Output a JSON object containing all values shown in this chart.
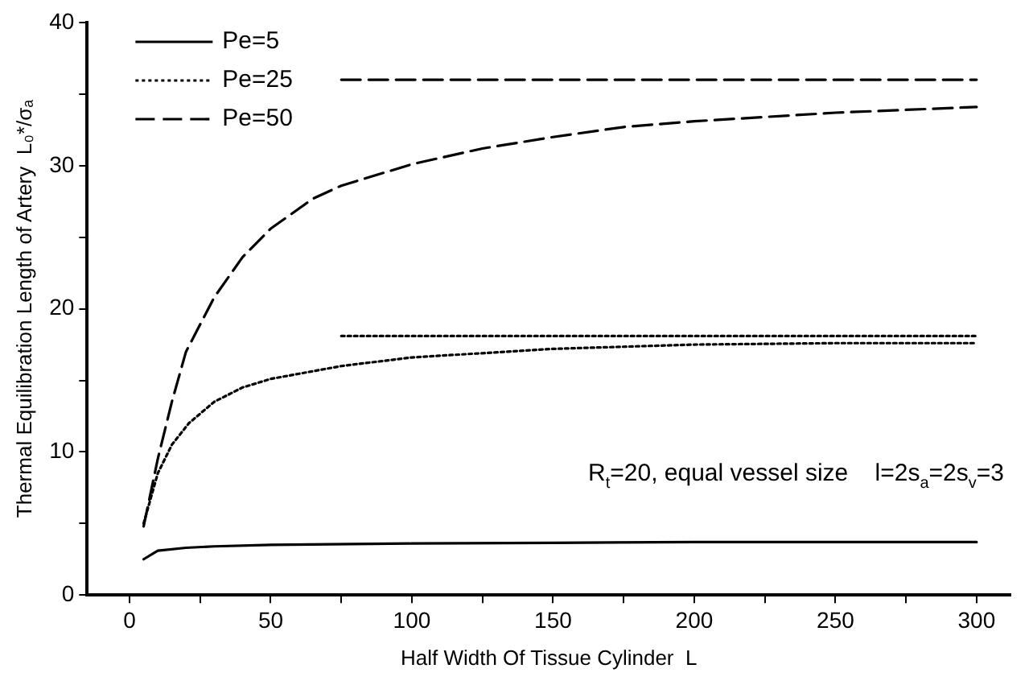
{
  "chart_data": {
    "type": "line",
    "xlabel": "Half Width Of Tissue Cylinder  L",
    "ylabel": "Thermal Equilibration Length of Artery  L₀*/σₐ",
    "xlim": [
      -15,
      312
    ],
    "ylim": [
      0,
      40
    ],
    "xticks": [
      0,
      {
        "value": 25,
        "label": null
      },
      50,
      {
        "value": 75,
        "label": null
      },
      100,
      {
        "value": 125,
        "label": null
      },
      150,
      {
        "value": 175,
        "label": null
      },
      200,
      {
        "value": 225,
        "label": null
      },
      250,
      {
        "value": 275,
        "label": null
      },
      300
    ],
    "yticks": [
      0,
      {
        "value": 5,
        "label": null
      },
      10,
      {
        "value": 15,
        "label": null
      },
      20,
      {
        "value": 25,
        "label": null
      },
      30,
      {
        "value": 35,
        "label": null
      },
      40
    ],
    "grid": false,
    "legend": "top left",
    "marker": "none",
    "annotations": [
      "R$_{t}$=20, equal vessel size    l=2s$_{a}$=2s$_{v}$=3"
    ],
    "series": [
      {
        "name": "Pe=5",
        "color": "#000000",
        "line_style": "solid",
        "x": [
          5,
          10,
          20,
          30,
          50,
          100,
          150,
          200,
          300
        ],
        "values": [
          2.5,
          3.1,
          3.3,
          3.4,
          3.5,
          3.6,
          3.65,
          3.7,
          3.7
        ]
      },
      {
        "name": "Pe=25",
        "color": "#000000",
        "line_style": "dotted",
        "x": [
          5,
          10,
          15,
          21,
          30,
          40,
          50,
          75,
          100,
          150,
          200,
          250,
          300
        ],
        "values": [
          5,
          8.5,
          10.5,
          12,
          13.5,
          14.5,
          15.1,
          16,
          16.6,
          17.2,
          17.5,
          17.6,
          17.6
        ]
      },
      {
        "name": "Pe=50",
        "color": "#000000",
        "line_style": "dashed",
        "x": [
          5,
          10,
          15,
          20,
          30,
          40,
          50,
          65,
          75,
          100,
          125,
          150,
          175,
          200,
          250,
          300
        ],
        "values": [
          4.8,
          9.5,
          13.5,
          17,
          20.8,
          23.6,
          25.6,
          27.7,
          28.6,
          30.1,
          31.2,
          32,
          32.7,
          33.1,
          33.7,
          34.1
        ]
      },
      {
        "color": "#000000",
        "line_style": "dotted",
        "x": [
          75,
          300
        ],
        "values": [
          18.1,
          18.1
        ]
      },
      {
        "color": "#000000",
        "line_style": "dashed",
        "x": [
          75,
          300
        ],
        "values": [
          36,
          36
        ]
      }
    ]
  }
}
